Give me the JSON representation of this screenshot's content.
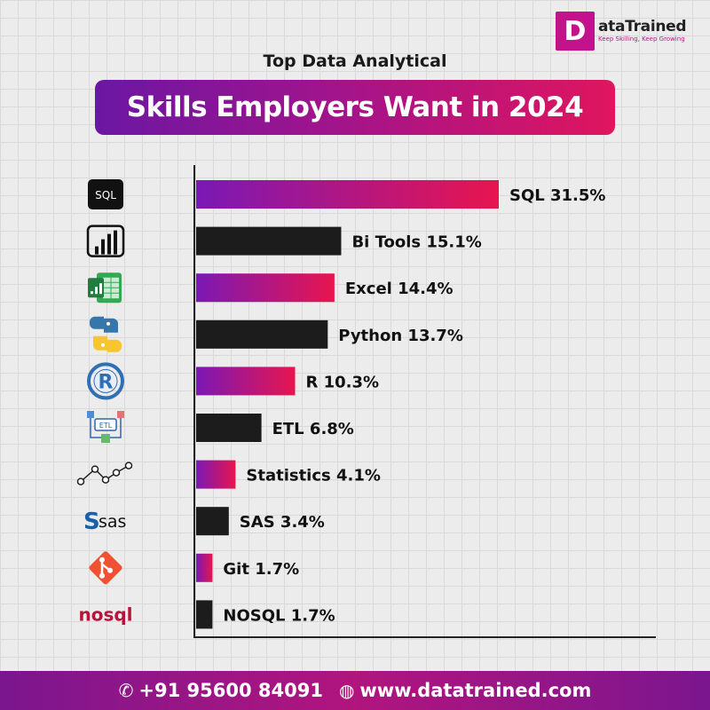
{
  "brand": {
    "logo_letter": "D",
    "name": "ataTrained",
    "tagline": "Keep Skilling, Keep Growing",
    "color": "#c2138c"
  },
  "header": {
    "pretitle": "Top Data Analytical",
    "title": "Skills Employers Want in 2024"
  },
  "chart_data": {
    "type": "bar",
    "orientation": "horizontal",
    "unit": "%",
    "categories": [
      "SQL",
      "Bi Tools",
      "Excel",
      "Python",
      "R",
      "ETL",
      "Statistics",
      "SAS",
      "Git",
      "NOSQL"
    ],
    "values": [
      31.5,
      15.1,
      14.4,
      13.7,
      10.3,
      6.8,
      4.1,
      3.4,
      1.7,
      1.7
    ],
    "labels": [
      "SQL 31.5%",
      "Bi Tools 15.1%",
      "Excel 14.4%",
      "Python 13.7%",
      "R 10.3%",
      "ETL 6.8%",
      "Statistics 4.1%",
      "SAS 3.4%",
      "Git 1.7%",
      "NOSQL 1.7%"
    ],
    "icons": [
      "sql-icon",
      "power-bi-icon",
      "excel-icon",
      "python-icon",
      "r-language-icon",
      "etl-icon",
      "statistics-icon",
      "sas-icon",
      "git-icon",
      "nosql-icon"
    ],
    "icon_text": {
      "sql": "SQL",
      "sas": "sas",
      "nosql": "nosql",
      "r": "R",
      "etl": "ETL"
    },
    "bar_styles": [
      "gradient",
      "dark",
      "gradient",
      "dark",
      "gradient",
      "dark",
      "gradient",
      "dark",
      "gradient",
      "dark"
    ],
    "colors": {
      "gradient_start": "#7a18b5",
      "gradient_end": "#e8154f",
      "dark": "#1c1c1c"
    },
    "xlim": [
      0,
      31.5
    ],
    "grid": true,
    "legend": "none"
  },
  "footer": {
    "phone": "+91 95600 84091",
    "website": "www.datatrained.com"
  }
}
